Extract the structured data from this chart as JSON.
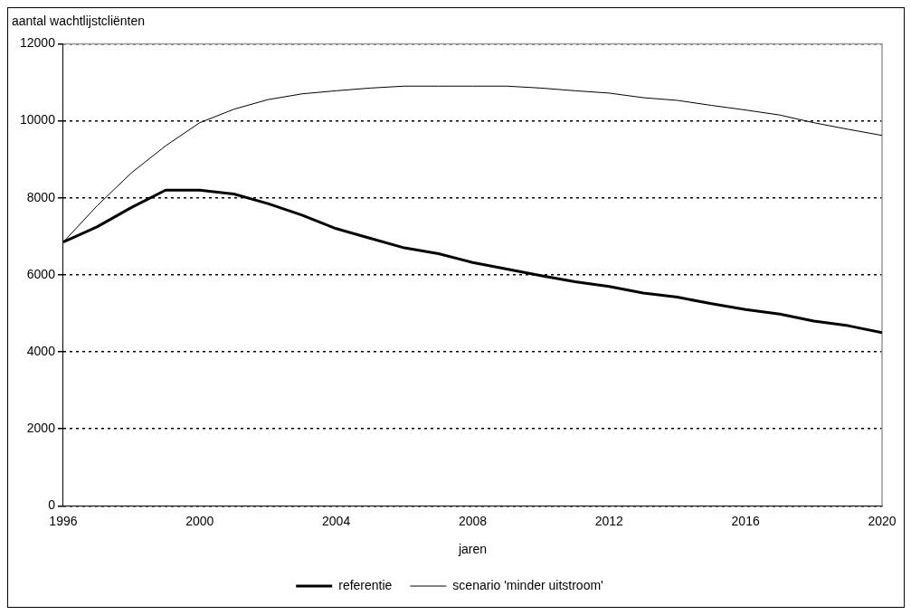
{
  "chart_data": {
    "type": "line",
    "xlabel": "jaren",
    "ylabel": "aantal wachtlijstcliënten",
    "x": [
      1996,
      1997,
      1998,
      1999,
      2000,
      2001,
      2002,
      2003,
      2004,
      2005,
      2006,
      2007,
      2008,
      2009,
      2010,
      2011,
      2012,
      2013,
      2014,
      2015,
      2016,
      2017,
      2018,
      2019,
      2020
    ],
    "series": [
      {
        "name": "referentie",
        "color": "#000000",
        "values": [
          6850,
          7250,
          7750,
          8200,
          8200,
          8100,
          7850,
          7550,
          7200,
          6950,
          6700,
          6550,
          6320,
          6150,
          5980,
          5820,
          5700,
          5530,
          5420,
          5250,
          5100,
          4980,
          4800,
          4680,
          4500
        ]
      },
      {
        "name": "scenario 'minder uitstroom'",
        "color": "#000000",
        "values": [
          6850,
          7800,
          8650,
          9350,
          9950,
          10300,
          10550,
          10700,
          10780,
          10850,
          10900,
          10900,
          10900,
          10900,
          10850,
          10780,
          10720,
          10600,
          10530,
          10400,
          10280,
          10150,
          9950,
          9780,
          9620
        ]
      }
    ],
    "xlim": [
      1996,
      2020
    ],
    "xticks": [
      1996,
      2000,
      2004,
      2008,
      2012,
      2016,
      2020
    ],
    "ylim": [
      0,
      12000
    ],
    "yticks": [
      0,
      2000,
      4000,
      6000,
      8000,
      10000,
      12000
    ],
    "grid": "y",
    "legend": "bottom",
    "marker": "none",
    "line_style": "solid"
  }
}
